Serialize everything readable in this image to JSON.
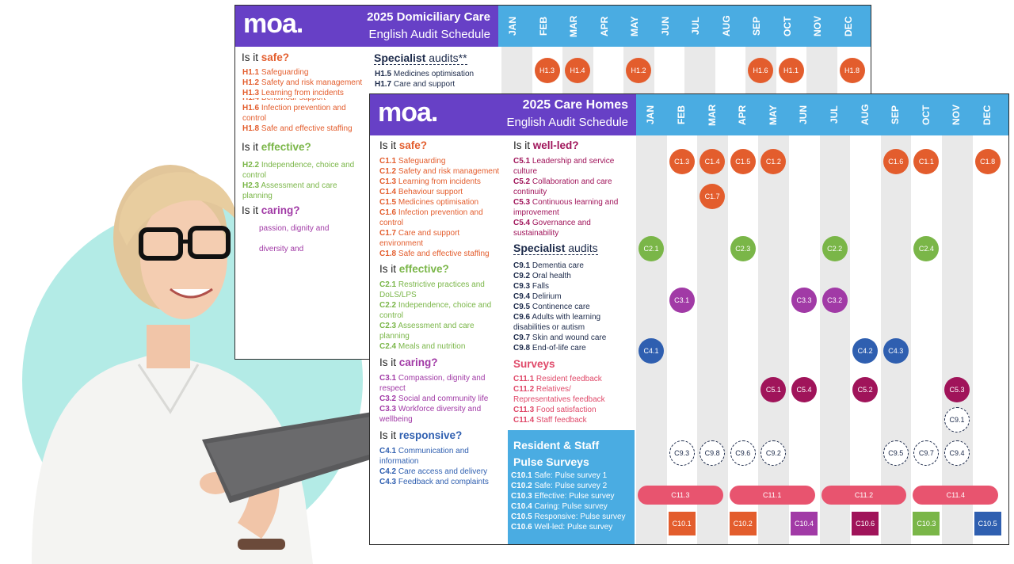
{
  "brand": {
    "logo": "moa."
  },
  "colors": {
    "purple": "#6740c6",
    "blue": "#4aace2",
    "safe": "#e35d2d",
    "effective": "#7ab648",
    "caring": "#a13aa6",
    "responsive": "#2f5fb0",
    "wellled": "#a0145a",
    "survey": "#e8546f",
    "teal": "#b3ebe6"
  },
  "dom": {
    "title": "2025 Domiciliary Care",
    "subtitle": "English Audit Schedule",
    "months": [
      "JAN",
      "FEB",
      "MAR",
      "APR",
      "MAY",
      "JUN",
      "JUL",
      "AUG",
      "SEP",
      "OCT",
      "NOV",
      "DEC"
    ],
    "safe_head_pre": "Is it ",
    "safe_head": "safe?",
    "safe_items": [
      {
        "code": "H1.1",
        "text": "Safeguarding"
      },
      {
        "code": "H1.2",
        "text": "Safety and risk management"
      },
      {
        "code": "H1.3",
        "text": "Learning from incidents"
      },
      {
        "code": "H1.4",
        "text": "Behaviour support"
      },
      {
        "code": "H1.6",
        "text": "Infection prevention and"
      },
      {
        "code": "",
        "text": "control"
      },
      {
        "code": "H1.8",
        "text": "Safe and effective staffing"
      }
    ],
    "effective_head_pre": "Is it ",
    "effective_head": "effective?",
    "effective_items": [
      {
        "code": "H2.2",
        "text": "Independence, choice and"
      },
      {
        "code": "",
        "text": "control"
      },
      {
        "code": "H2.3",
        "text": "Assessment and care"
      },
      {
        "code": "",
        "text": "planning"
      }
    ],
    "caring_head_pre": "Is it ",
    "caring_head": "caring?",
    "caring_items": [
      "passion, dignity and",
      "diversity and"
    ],
    "spec_head_b": "Specialist",
    "spec_head": " audits**",
    "spec_items": [
      {
        "code": "H1.5",
        "text": "Medicines optimisation"
      },
      {
        "code": "H1.7",
        "text": "Care and support"
      }
    ],
    "dots": [
      {
        "label": "H1.3",
        "month": 1
      },
      {
        "label": "H1.4",
        "month": 2
      },
      {
        "label": "H1.2",
        "month": 4
      },
      {
        "label": "H1.6",
        "month": 8
      },
      {
        "label": "H1.1",
        "month": 9
      },
      {
        "label": "H1.8",
        "month": 11
      }
    ]
  },
  "care": {
    "title": "2025 Care Homes",
    "subtitle": "English Audit Schedule",
    "months": [
      "JAN",
      "FEB",
      "MAR",
      "APR",
      "MAY",
      "JUN",
      "JUL",
      "AUG",
      "SEP",
      "OCT",
      "NOV",
      "DEC"
    ],
    "safe_head_pre": "Is it ",
    "safe_head": "safe?",
    "safe_items": [
      {
        "code": "C1.1",
        "text": "Safeguarding"
      },
      {
        "code": "C1.2",
        "text": "Safety and risk management"
      },
      {
        "code": "C1.3",
        "text": "Learning from incidents"
      },
      {
        "code": "C1.4",
        "text": "Behaviour support"
      },
      {
        "code": "C1.5",
        "text": "Medicines optimisation"
      },
      {
        "code": "C1.6",
        "text": "Infection prevention and"
      },
      {
        "code": "",
        "text": "control"
      },
      {
        "code": "C1.7",
        "text": "Care and support"
      },
      {
        "code": "",
        "text": "environment"
      },
      {
        "code": "C1.8",
        "text": "Safe and effective staffing"
      }
    ],
    "effective_head_pre": "Is it ",
    "effective_head": "effective?",
    "effective_items": [
      {
        "code": "C2.1",
        "text": "Restrictive practices and"
      },
      {
        "code": "",
        "text": "DoLS/LPS"
      },
      {
        "code": "C2.2",
        "text": "Independence, choice and"
      },
      {
        "code": "",
        "text": "control"
      },
      {
        "code": "C2.3",
        "text": "Assessment and care"
      },
      {
        "code": "",
        "text": "planning"
      },
      {
        "code": "C2.4",
        "text": "Meals and nutrition"
      }
    ],
    "caring_head_pre": "Is it ",
    "caring_head": "caring?",
    "caring_items": [
      {
        "code": "C3.1",
        "text": "Compassion, dignity and"
      },
      {
        "code": "",
        "text": "respect"
      },
      {
        "code": "C3.2",
        "text": "Social and community life"
      },
      {
        "code": "C3.3",
        "text": "Workforce diversity and"
      },
      {
        "code": "",
        "text": "wellbeing"
      }
    ],
    "responsive_head_pre": "Is it ",
    "responsive_head": "responsive?",
    "responsive_items": [
      {
        "code": "C4.1",
        "text": "Communication and"
      },
      {
        "code": "",
        "text": "information"
      },
      {
        "code": "C4.2",
        "text": "Care access and delivery"
      },
      {
        "code": "C4.3",
        "text": "Feedback and complaints"
      }
    ],
    "wellled_head_pre": "Is it ",
    "wellled_head": "well-led?",
    "wellled_items": [
      {
        "code": "C5.1",
        "text": "Leadership and service"
      },
      {
        "code": "",
        "text": "culture"
      },
      {
        "code": "C5.2",
        "text": "Collaboration and care"
      },
      {
        "code": "",
        "text": "continuity"
      },
      {
        "code": "C5.3",
        "text": "Continuous learning and"
      },
      {
        "code": "",
        "text": "improvement"
      },
      {
        "code": "C5.4",
        "text": "Governance and"
      },
      {
        "code": "",
        "text": "sustainability"
      }
    ],
    "spec_head_b": "Specialist",
    "spec_head": " audits",
    "spec_items": [
      {
        "code": "C9.1",
        "text": "Dementia care"
      },
      {
        "code": "C9.2",
        "text": "Oral health"
      },
      {
        "code": "C9.3",
        "text": "Falls"
      },
      {
        "code": "C9.4",
        "text": "Delirium"
      },
      {
        "code": "C9.5",
        "text": "Continence care"
      },
      {
        "code": "C9.6",
        "text": "Adults with learning"
      },
      {
        "code": "",
        "text": "disabilities or autism"
      },
      {
        "code": "C9.7",
        "text": "Skin and wound care"
      },
      {
        "code": "C9.8",
        "text": "End-of-life care"
      }
    ],
    "surveys_head": "Surveys",
    "survey_items": [
      {
        "code": "C11.1",
        "text": "Resident  feedback"
      },
      {
        "code": "C11.2",
        "text": "Relatives/"
      },
      {
        "code": "",
        "text": "Representatives feedback"
      },
      {
        "code": "C11.3",
        "text": "Food satisfaction"
      },
      {
        "code": "C11.4",
        "text": "Staff feedback"
      }
    ],
    "pulse_title_1": "Resident & Staff",
    "pulse_title_2": "Pulse Surveys",
    "pulse_items": [
      {
        "code": "C10.1",
        "text": "Safe: Pulse survey 1"
      },
      {
        "code": "C10.2",
        "text": "Safe: Pulse survey 2"
      },
      {
        "code": "C10.3",
        "text": "Effective: Pulse survey"
      },
      {
        "code": "C10.4",
        "text": "Caring: Pulse survey"
      },
      {
        "code": "C10.5",
        "text": "Responsive: Pulse survey"
      },
      {
        "code": "C10.6",
        "text": "Well-led: Pulse survey"
      }
    ],
    "dots": [
      {
        "label": "C1.3",
        "month": 1,
        "row": 0,
        "kind": "safe"
      },
      {
        "label": "C1.4",
        "month": 2,
        "row": 0,
        "kind": "safe"
      },
      {
        "label": "C1.5",
        "month": 3,
        "row": 0,
        "kind": "safe"
      },
      {
        "label": "C1.2",
        "month": 4,
        "row": 0,
        "kind": "safe"
      },
      {
        "label": "C1.6",
        "month": 8,
        "row": 0,
        "kind": "safe"
      },
      {
        "label": "C1.1",
        "month": 9,
        "row": 0,
        "kind": "safe"
      },
      {
        "label": "C1.8",
        "month": 11,
        "row": 0,
        "kind": "safe"
      },
      {
        "label": "C1.7",
        "month": 2,
        "row": 1,
        "kind": "safe"
      },
      {
        "label": "C2.1",
        "month": 0,
        "row": 2,
        "kind": "effective"
      },
      {
        "label": "C2.3",
        "month": 3,
        "row": 2,
        "kind": "effective"
      },
      {
        "label": "C2.2",
        "month": 6,
        "row": 2,
        "kind": "effective"
      },
      {
        "label": "C2.4",
        "month": 9,
        "row": 2,
        "kind": "effective"
      },
      {
        "label": "C3.1",
        "month": 1,
        "row": 3,
        "kind": "caring"
      },
      {
        "label": "C3.3",
        "month": 5,
        "row": 3,
        "kind": "caring"
      },
      {
        "label": "C3.2",
        "month": 6,
        "row": 3,
        "kind": "caring"
      },
      {
        "label": "C4.1",
        "month": 0,
        "row": 4,
        "kind": "responsive"
      },
      {
        "label": "C4.2",
        "month": 7,
        "row": 4,
        "kind": "responsive"
      },
      {
        "label": "C4.3",
        "month": 8,
        "row": 4,
        "kind": "responsive"
      },
      {
        "label": "C5.1",
        "month": 4,
        "row": 5,
        "kind": "wellled"
      },
      {
        "label": "C5.4",
        "month": 5,
        "row": 5,
        "kind": "wellled"
      },
      {
        "label": "C5.2",
        "month": 7,
        "row": 5,
        "kind": "wellled"
      },
      {
        "label": "C5.3",
        "month": 10,
        "row": 5,
        "kind": "wellled"
      },
      {
        "label": "C9.1",
        "month": 10,
        "row": 6,
        "kind": "dashed"
      },
      {
        "label": "C9.3",
        "month": 1,
        "row": 7,
        "kind": "dashed"
      },
      {
        "label": "C9.8",
        "month": 2,
        "row": 7,
        "kind": "dashed"
      },
      {
        "label": "C9.6",
        "month": 3,
        "row": 7,
        "kind": "dashed"
      },
      {
        "label": "C9.2",
        "month": 4,
        "row": 7,
        "kind": "dashed"
      },
      {
        "label": "C9.5",
        "month": 8,
        "row": 7,
        "kind": "dashed"
      },
      {
        "label": "C9.7",
        "month": 9,
        "row": 7,
        "kind": "dashed"
      },
      {
        "label": "C9.4",
        "month": 10,
        "row": 7,
        "kind": "dashed"
      }
    ],
    "pills": [
      {
        "label": "C11.3",
        "from": 0,
        "to": 2
      },
      {
        "label": "C11.1",
        "from": 3,
        "to": 5
      },
      {
        "label": "C11.2",
        "from": 6,
        "to": 8
      },
      {
        "label": "C11.4",
        "from": 9,
        "to": 11
      }
    ],
    "squares": [
      {
        "label": "C10.1",
        "month": 1,
        "kind": "safe"
      },
      {
        "label": "C10.2",
        "month": 3,
        "kind": "safe"
      },
      {
        "label": "C10.4",
        "month": 5,
        "kind": "caring"
      },
      {
        "label": "C10.6",
        "month": 7,
        "kind": "wellled"
      },
      {
        "label": "C10.3",
        "month": 9,
        "kind": "effective"
      },
      {
        "label": "C10.5",
        "month": 11,
        "kind": "responsive"
      }
    ]
  }
}
